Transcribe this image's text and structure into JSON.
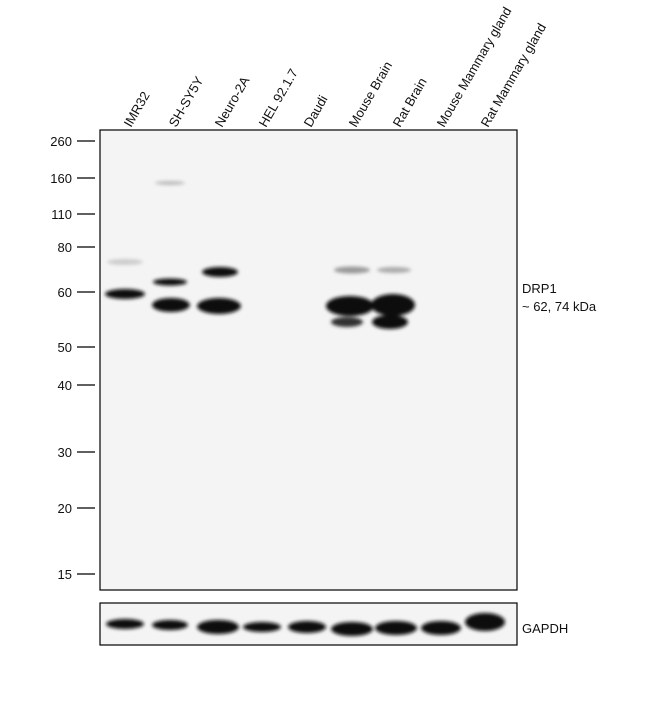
{
  "lanes": [
    "IMR32",
    "SH-SY5Y",
    "Neuro-2A",
    "HEL 92.1.7",
    "Daudi",
    "Mouse Brain",
    "Rat Brain",
    "Mouse Mammary gland",
    "Rat Mammary gland"
  ],
  "markers": [
    260,
    160,
    110,
    80,
    60,
    50,
    40,
    30,
    20,
    15
  ],
  "target": {
    "name": "DRP1",
    "size": "~ 62, 74 kDa"
  },
  "loading_control": "GAPDH"
}
